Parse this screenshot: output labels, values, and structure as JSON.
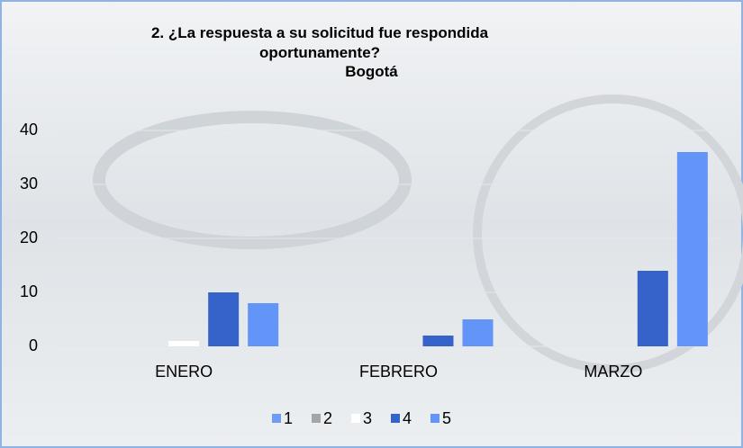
{
  "chart_data": {
    "type": "bar",
    "title": "2. ¿La respuesta a su solicitud fue respondida oportunamente?",
    "subtitle": "Bogotá",
    "categories": [
      "ENERO",
      "FEBRERO",
      "MARZO"
    ],
    "series": [
      {
        "name": "1",
        "color": "#6e9cf5",
        "values": [
          0,
          0,
          0
        ]
      },
      {
        "name": "2",
        "color": "#a5a5a5",
        "values": [
          0,
          0,
          0
        ]
      },
      {
        "name": "3",
        "color": "#ffffff",
        "values": [
          1,
          0,
          0
        ]
      },
      {
        "name": "4",
        "color": "#3563c9",
        "values": [
          10,
          2,
          14
        ]
      },
      {
        "name": "5",
        "color": "#6394f8",
        "values": [
          8,
          5,
          36
        ]
      }
    ],
    "ylim": [
      0,
      40
    ],
    "yticks": [
      0,
      10,
      20,
      30,
      40
    ],
    "grid": true,
    "legend": "bottom"
  }
}
